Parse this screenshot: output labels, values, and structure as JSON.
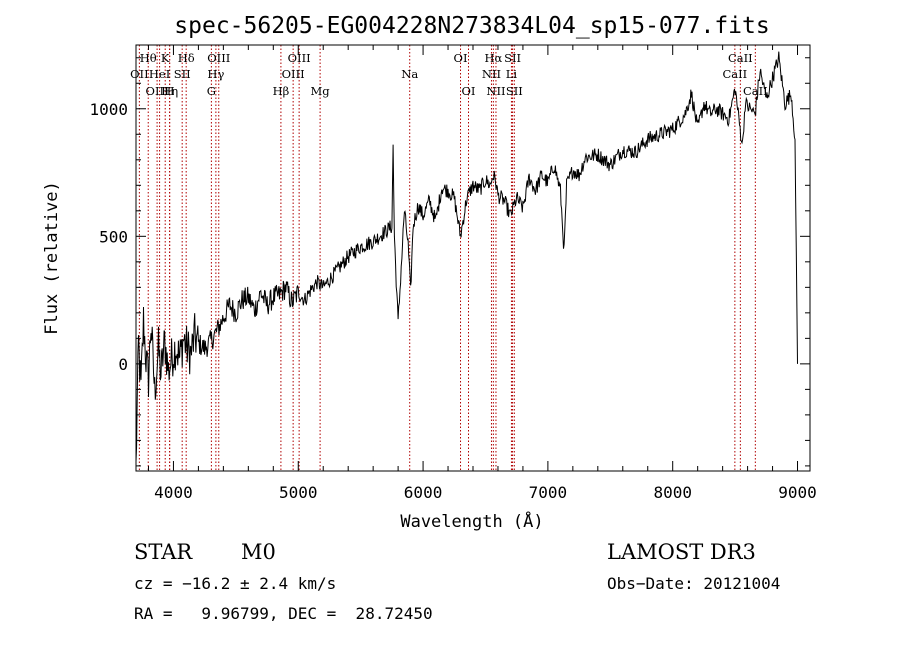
{
  "chart_data": {
    "type": "line",
    "title": "spec-56205-EG004228N273834L04_sp15-077.fits",
    "xlabel": "Wavelength (Å)",
    "ylabel": "Flux (relative)",
    "xlim": [
      3700,
      9100
    ],
    "ylim": [
      -420,
      1250
    ],
    "xticks": [
      4000,
      5000,
      6000,
      7000,
      8000,
      9000
    ],
    "yticks": [
      0,
      500,
      1000
    ],
    "grid": false,
    "series": [
      {
        "x": [
          3700,
          3720,
          3740,
          3760,
          3780,
          3800,
          3820,
          3850,
          3880,
          3900,
          3930,
          3960,
          3990,
          4020,
          4050,
          4080,
          4110,
          4140,
          4170,
          4200,
          4250,
          4300,
          4350,
          4400,
          4450,
          4500,
          4550,
          4600,
          4650,
          4700,
          4750,
          4800,
          4850,
          4900,
          4950,
          5000,
          5050,
          5100,
          5150,
          5200,
          5300,
          5400,
          5500,
          5600,
          5700,
          5750,
          5760,
          5770,
          5800,
          5850,
          5880,
          5900,
          5920,
          5960,
          6000,
          6050,
          6100,
          6150,
          6200,
          6250,
          6300,
          6350,
          6400,
          6450,
          6500,
          6540,
          6560,
          6580,
          6600,
          6650,
          6700,
          6750,
          6800,
          6850,
          6900,
          6950,
          7000,
          7050,
          7100,
          7130,
          7150,
          7200,
          7250,
          7300,
          7400,
          7500,
          7600,
          7700,
          7800,
          7900,
          8000,
          8100,
          8150,
          8200,
          8250,
          8300,
          8350,
          8400,
          8450,
          8500,
          8540,
          8560,
          8580,
          8620,
          8660,
          8700,
          8750,
          8800,
          8850,
          8900,
          8950,
          8980,
          9000
        ],
        "values": [
          -410,
          80,
          -100,
          170,
          20,
          -60,
          160,
          -110,
          60,
          -40,
          90,
          -30,
          30,
          70,
          20,
          100,
          60,
          40,
          110,
          80,
          60,
          90,
          130,
          180,
          230,
          200,
          250,
          260,
          210,
          280,
          230,
          260,
          270,
          300,
          240,
          280,
          250,
          290,
          320,
          300,
          360,
          420,
          460,
          480,
          520,
          540,
          860,
          500,
          160,
          600,
          470,
          280,
          540,
          620,
          580,
          640,
          560,
          690,
          680,
          650,
          500,
          650,
          700,
          680,
          720,
          700,
          740,
          720,
          660,
          640,
          580,
          650,
          610,
          730,
          680,
          740,
          710,
          780,
          680,
          440,
          700,
          760,
          740,
          810,
          820,
          780,
          840,
          830,
          880,
          900,
          920,
          980,
          1060,
          920,
          1020,
          980,
          1000,
          980,
          960,
          1080,
          920,
          860,
          1020,
          1000,
          980,
          1150,
          1040,
          1120,
          1200,
          1020,
          1060,
          880,
          0
        ]
      }
    ],
    "spectral_lines": [
      {
        "name": "OII",
        "x": 3727,
        "row": 1
      },
      {
        "name": "Hθ",
        "x": 3798,
        "row": 0
      },
      {
        "name": "OIII",
        "x": 3869,
        "row": 2
      },
      {
        "name": "HeI",
        "x": 3889,
        "row": 1
      },
      {
        "name": "K",
        "x": 3934,
        "row": 0
      },
      {
        "name": "H",
        "x": 3969,
        "row": 2
      },
      {
        "name": "Hη",
        "x": 3970,
        "row": 2
      },
      {
        "name": "SII",
        "x": 4070,
        "row": 1
      },
      {
        "name": "Hδ",
        "x": 4102,
        "row": 0
      },
      {
        "name": "OIII",
        "x": 4363,
        "row": 0
      },
      {
        "name": "Hγ",
        "x": 4340,
        "row": 1
      },
      {
        "name": "G",
        "x": 4304,
        "row": 2
      },
      {
        "name": "Hβ",
        "x": 4861,
        "row": 2
      },
      {
        "name": "OIII",
        "x": 5007,
        "row": 0
      },
      {
        "name": "OIII",
        "x": 4959,
        "row": 1
      },
      {
        "name": "Mg",
        "x": 5175,
        "row": 2
      },
      {
        "name": "Na",
        "x": 5893,
        "row": 1
      },
      {
        "name": "OI",
        "x": 6300,
        "row": 0
      },
      {
        "name": "OI",
        "x": 6364,
        "row": 2
      },
      {
        "name": "Hα",
        "x": 6563,
        "row": 0
      },
      {
        "name": "NII",
        "x": 6548,
        "row": 1
      },
      {
        "name": "NII",
        "x": 6584,
        "row": 2
      },
      {
        "name": "SII",
        "x": 6717,
        "row": 0
      },
      {
        "name": "Li",
        "x": 6708,
        "row": 1
      },
      {
        "name": "SII",
        "x": 6731,
        "row": 2
      },
      {
        "name": "CaII",
        "x": 8498,
        "row": 1
      },
      {
        "name": "CaII",
        "x": 8542,
        "row": 0
      },
      {
        "name": "CaII",
        "x": 8662,
        "row": 2
      }
    ]
  },
  "info": {
    "object_class": "STAR",
    "subclass": "M0",
    "survey": "LAMOST DR3",
    "velocity": "cz = −16.2 ± 2.4 km/s",
    "obs_date": "Obs−Date: 20121004",
    "coords": "RA =   9.96799, DEC =  28.72450"
  },
  "colors": {
    "line_marker": "#b00000",
    "spectrum": "#000000",
    "axes": "#000000"
  }
}
